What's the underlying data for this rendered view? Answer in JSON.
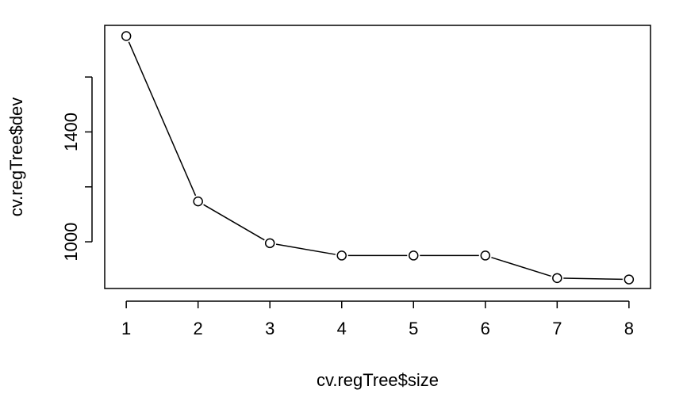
{
  "chart_data": {
    "type": "line",
    "markers": "open-circle",
    "title": "",
    "xlabel": "cv.regTree$size",
    "ylabel": "cv.regTree$dev",
    "x": [
      1,
      2,
      3,
      4,
      5,
      6,
      7,
      8
    ],
    "series": [
      {
        "values": [
          1749,
          1147,
          995,
          950,
          950,
          950,
          868,
          863
        ]
      }
    ],
    "xlim": [
      0.7,
      8.3
    ],
    "ylim": [
      830,
      1788
    ],
    "x_ticks": [
      1,
      2,
      3,
      4,
      5,
      6,
      7,
      8
    ],
    "y_ticks": [
      1000,
      1400
    ],
    "y_minor_ticks": [
      1200,
      1600
    ],
    "grid": false,
    "legend": "none",
    "colors": {
      "line": "#000000",
      "marker_stroke": "#000000",
      "marker_fill": "#ffffff",
      "axes": "#000000",
      "background": "#ffffff"
    }
  }
}
